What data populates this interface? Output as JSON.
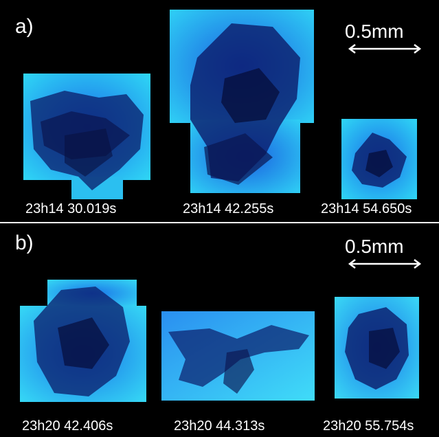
{
  "panels": [
    {
      "label": "a)",
      "scale_label": "0.5mm",
      "captions": [
        "23h14 30.019s",
        "23h14 42.255s",
        "23h14 54.650s"
      ]
    },
    {
      "label": "b)",
      "scale_label": "0.5mm",
      "captions": [
        "23h20 42.406s",
        "23h20 44.313s",
        "23h20 55.754s"
      ]
    }
  ],
  "colors": {
    "background": "#000000",
    "ice_light": "#2fd6f5",
    "ice_mid": "#1a74e8",
    "crystal_dark": "#0b1c6a",
    "text": "#ffffff"
  }
}
